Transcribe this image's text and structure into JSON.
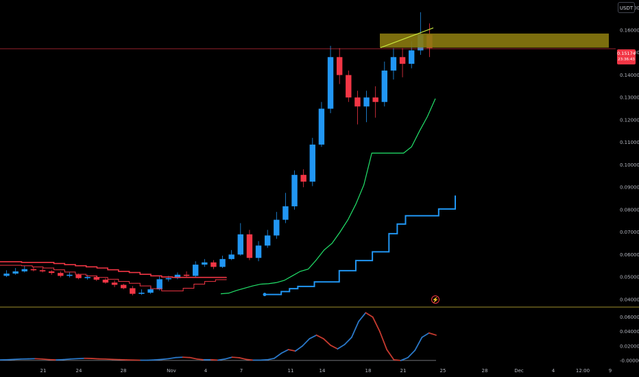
{
  "toolbar": {
    "currency_label": "USDT"
  },
  "colors": {
    "background": "#000000",
    "candle_up": "#2196f3",
    "candle_down": "#f23645",
    "upper_band": "#f23645",
    "trail_green": "#22e36b",
    "trail_blue": "#2196f3",
    "zone_fill": "#8a7a10",
    "trendline": "#c8e63c",
    "pane_divider": "#d4c23a",
    "osc_up": "#2a78c8",
    "osc_down": "#c63a2f"
  },
  "price_tag": {
    "price": "0.15174",
    "countdown": "23:36:43"
  },
  "flash_icon": "lightning-icon",
  "chart_data": [
    {
      "type": "candlestick",
      "y_tick_labels": [
        "0.04000",
        "0.05000",
        "0.06000",
        "0.07000",
        "0.08000",
        "0.09000",
        "0.10000",
        "0.11000",
        "0.12000",
        "0.13000",
        "0.14000",
        "0.15000",
        "0.16000",
        "0.17000"
      ],
      "ylim": [
        0.0375,
        0.171
      ],
      "x_tick_labels": [
        "21",
        "24",
        "28",
        "Nov",
        "4",
        "7",
        "11",
        "14",
        "18",
        "21",
        "25",
        "28",
        "Dec",
        "4",
        "12:00",
        "9"
      ],
      "last_price": 0.15174,
      "close": [
        0.0515,
        0.0525,
        0.0535,
        0.053,
        0.0525,
        0.0518,
        0.0505,
        0.051,
        0.0495,
        0.05,
        0.0488,
        0.0475,
        0.0465,
        0.045,
        0.0425,
        0.043,
        0.0445,
        0.049,
        0.0495,
        0.051,
        0.0505,
        0.0555,
        0.0565,
        0.0545,
        0.058,
        0.06,
        0.069,
        0.0585,
        0.064,
        0.0685,
        0.0755,
        0.0815,
        0.0955,
        0.0925,
        0.109,
        0.125,
        0.148,
        0.14,
        0.13,
        0.126,
        0.13,
        0.128,
        0.142,
        0.148,
        0.145,
        0.151,
        0.158,
        0.152
      ],
      "open": [
        0.0505,
        0.0515,
        0.0525,
        0.0535,
        0.053,
        0.0525,
        0.0518,
        0.0505,
        0.051,
        0.0495,
        0.05,
        0.0488,
        0.0475,
        0.0465,
        0.045,
        0.0425,
        0.043,
        0.0445,
        0.049,
        0.0495,
        0.051,
        0.0505,
        0.0555,
        0.0565,
        0.0545,
        0.058,
        0.06,
        0.069,
        0.0585,
        0.064,
        0.0685,
        0.0755,
        0.0815,
        0.0955,
        0.0925,
        0.109,
        0.125,
        0.148,
        0.14,
        0.13,
        0.126,
        0.13,
        0.128,
        0.142,
        0.148,
        0.145,
        0.151,
        0.158
      ],
      "high": [
        0.053,
        0.054,
        0.055,
        0.0545,
        0.054,
        0.053,
        0.0525,
        0.052,
        0.0515,
        0.051,
        0.0505,
        0.0495,
        0.0485,
        0.047,
        0.046,
        0.0445,
        0.0455,
        0.0505,
        0.0505,
        0.052,
        0.0525,
        0.057,
        0.058,
        0.0575,
        0.0595,
        0.062,
        0.074,
        0.071,
        0.066,
        0.071,
        0.079,
        0.0875,
        0.0975,
        0.098,
        0.112,
        0.128,
        0.153,
        0.152,
        0.142,
        0.133,
        0.133,
        0.135,
        0.146,
        0.152,
        0.152,
        0.155,
        0.168,
        0.163
      ],
      "low": [
        0.05,
        0.051,
        0.052,
        0.0525,
        0.052,
        0.051,
        0.0498,
        0.0498,
        0.049,
        0.0488,
        0.0482,
        0.047,
        0.0455,
        0.0445,
        0.0418,
        0.042,
        0.0425,
        0.044,
        0.048,
        0.049,
        0.0498,
        0.0498,
        0.0545,
        0.0535,
        0.054,
        0.0575,
        0.0595,
        0.0575,
        0.057,
        0.063,
        0.067,
        0.074,
        0.08,
        0.09,
        0.0905,
        0.108,
        0.123,
        0.136,
        0.128,
        0.118,
        0.119,
        0.121,
        0.126,
        0.138,
        0.139,
        0.143,
        0.149,
        0.148
      ],
      "upper_band": [
        0.0568,
        0.0568,
        0.0565,
        0.0565,
        0.0565,
        0.056,
        0.0555,
        0.055,
        0.0545,
        0.054,
        0.0532,
        0.0525,
        0.052,
        0.0512,
        0.0505,
        0.05,
        0.0498,
        0.0498,
        0.0498,
        0.0498,
        0.0498,
        0.05
      ],
      "lower_band": [
        0.0552,
        0.0552,
        0.055,
        0.0545,
        0.054,
        0.0532,
        0.0522,
        0.0512,
        0.0505,
        0.0498,
        0.049,
        0.048,
        0.0472,
        0.046,
        0.0448,
        0.0438,
        0.0438,
        0.045,
        0.0468,
        0.048,
        0.0488,
        0.049
      ],
      "trail_green": [
        0.0425,
        0.0428,
        0.044,
        0.045,
        0.046,
        0.0468,
        0.047,
        0.0475,
        0.0485,
        0.0505,
        0.0525,
        0.0535,
        0.0575,
        0.062,
        0.065,
        0.07,
        0.0755,
        0.0825,
        0.091,
        0.1052,
        0.1052,
        0.1052,
        0.1052,
        0.1052,
        0.108,
        0.115,
        0.1215,
        0.1295
      ],
      "trail_blue": [
        0.0422,
        0.0422,
        0.0435,
        0.0448,
        0.0458,
        0.0458,
        0.0478,
        0.0478,
        0.0478,
        0.0528,
        0.0528,
        0.0573,
        0.0573,
        0.0612,
        0.0612,
        0.0693,
        0.0736,
        0.0773,
        0.0773,
        0.0773,
        0.0773,
        0.0803,
        0.0803,
        0.0863
      ],
      "zone": {
        "top": 0.1585,
        "bottom": 0.1522
      },
      "trendline": {
        "from": 0.1522,
        "to": 0.161
      },
      "horizontal_line": 0.15174
    },
    {
      "type": "line",
      "y_tick_labels": [
        "0.06000",
        "0.04000",
        "0.02000",
        "-0.00000"
      ],
      "ylim": [
        -0.002,
        0.07
      ],
      "series": [
        {
          "values": [
            0.0008,
            0.001,
            0.0015,
            0.002,
            0.0022,
            0.0025,
            0.002,
            0.0012,
            0.0008,
            0.0012,
            0.002,
            0.0025,
            0.003,
            0.0028,
            0.0022,
            0.002,
            0.0015,
            0.0012,
            0.0008,
            0.0006,
            0.0004,
            0.0004,
            0.0008,
            0.0015,
            0.0025,
            0.004,
            0.0045,
            0.004,
            0.002,
            0.001,
            0.001,
            0.0005,
            0.002,
            0.0045,
            0.0038,
            0.0015,
            0.0005,
            0.0005,
            0.001,
            0.003,
            0.01,
            0.015,
            0.013,
            0.02,
            0.03,
            0.035,
            0.03,
            0.021,
            0.016,
            0.022,
            0.032,
            0.054,
            0.066,
            0.06,
            0.04,
            0.015,
            0.001,
            0.0,
            0.004,
            0.014,
            0.032,
            0.038,
            0.035
          ]
        }
      ],
      "zero_line": 0.0
    }
  ]
}
